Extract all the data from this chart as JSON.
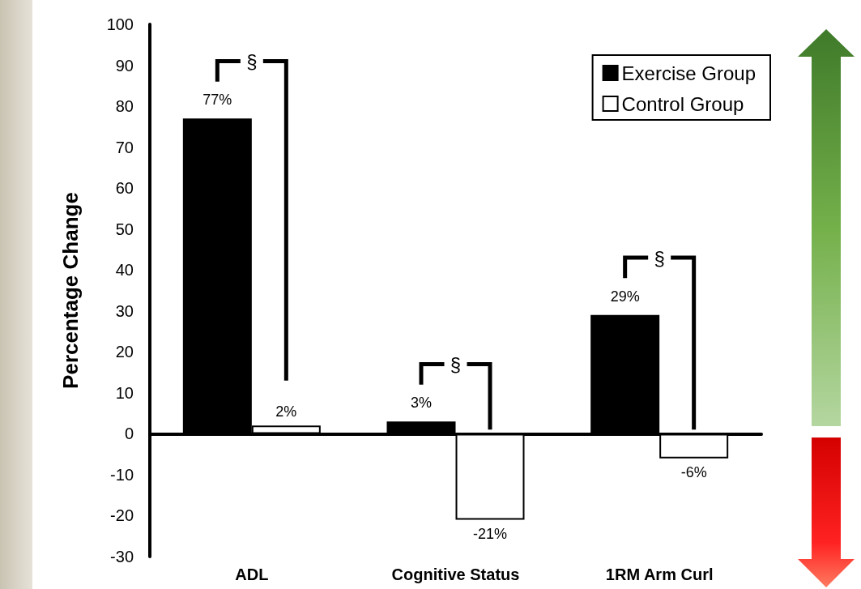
{
  "chart_data": {
    "type": "bar",
    "ylabel": "Percentage Change",
    "categories": [
      "ADL",
      "Cognitive Status",
      "1RM Arm Curl"
    ],
    "series": [
      {
        "name": "Exercise Group",
        "color": "#000000",
        "values": [
          77,
          3,
          29
        ],
        "value_labels": [
          "77%",
          "3%",
          "29%"
        ]
      },
      {
        "name": "Control Group",
        "color": "#ffffff",
        "values": [
          2,
          -21,
          -6
        ],
        "value_labels": [
          "2%",
          "-21%",
          "-6%"
        ]
      }
    ],
    "ylim": [
      -30,
      100
    ],
    "yticks": [
      -30,
      -20,
      -10,
      0,
      10,
      20,
      30,
      40,
      50,
      60,
      70,
      80,
      90,
      100
    ],
    "legend": "top right",
    "annotations": [
      "§",
      "§",
      "§"
    ]
  }
}
